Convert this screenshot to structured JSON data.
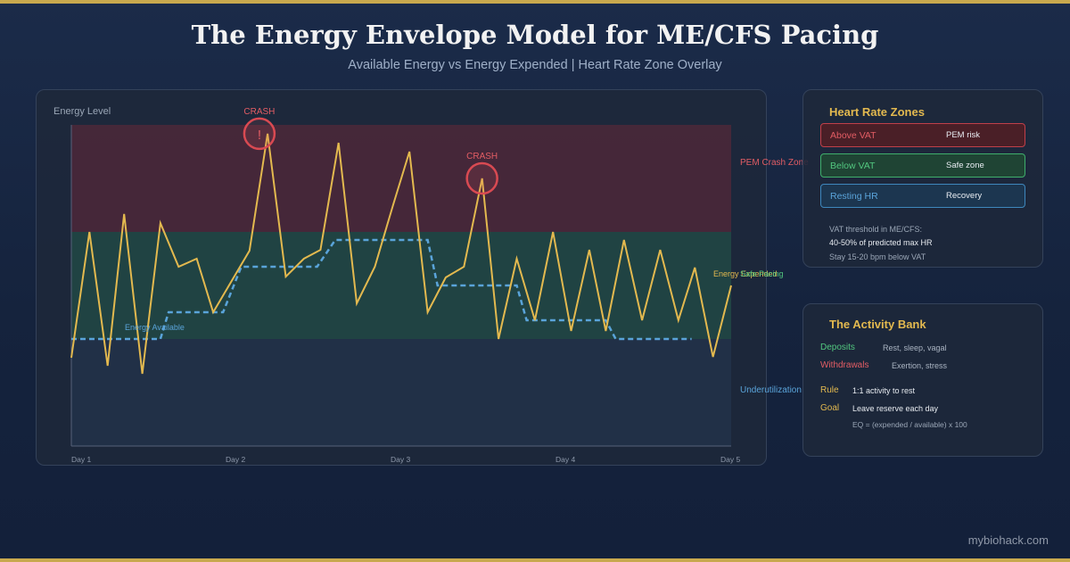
{
  "title": "The Energy Envelope Model for ME/CFS Pacing",
  "subtitle": "Available Energy vs Energy Expended | Heart Rate Zone Overlay",
  "chart_data": {
    "type": "line",
    "ylabel": "Energy Level",
    "x_ticks": [
      "Day 1",
      "Day 2",
      "Day 3",
      "Day 4",
      "Day 5"
    ],
    "x_range": [
      0,
      4
    ],
    "y_range": [
      0,
      12
    ],
    "bands": [
      {
        "label": "PEM Crash Zone",
        "from": 8,
        "to": 12,
        "color": "#e35d64"
      },
      {
        "label": "Safe Pacing",
        "from": 4,
        "to": 8,
        "color": "#52c77f"
      },
      {
        "label": "Underutilization",
        "from": 0,
        "to": 4,
        "color": "#5aa4da"
      }
    ],
    "series": [
      {
        "name": "Energy Available",
        "color": "#5aa4da",
        "style": "dashed",
        "points": [
          [
            0,
            4
          ],
          [
            0.54,
            4
          ],
          [
            0.59,
            5
          ],
          [
            0.92,
            5
          ],
          [
            1.03,
            6.7
          ],
          [
            1.49,
            6.7
          ],
          [
            1.6,
            7.7
          ],
          [
            2.16,
            7.7
          ],
          [
            2.22,
            6
          ],
          [
            2.7,
            6
          ],
          [
            2.76,
            4.7
          ],
          [
            3.24,
            4.7
          ],
          [
            3.3,
            4
          ],
          [
            3.76,
            4
          ]
        ]
      },
      {
        "name": "Energy Expended",
        "color": "#e3b94f",
        "style": "solid",
        "points": [
          [
            0,
            3.3
          ],
          [
            0.11,
            8
          ],
          [
            0.22,
            3
          ],
          [
            0.32,
            8.67
          ],
          [
            0.43,
            2.7
          ],
          [
            0.54,
            8.33
          ],
          [
            0.65,
            6.7
          ],
          [
            0.76,
            7
          ],
          [
            0.86,
            5
          ],
          [
            1.08,
            7.3
          ],
          [
            1.19,
            11.67
          ],
          [
            1.3,
            6.33
          ],
          [
            1.41,
            7
          ],
          [
            1.51,
            7.33
          ],
          [
            1.62,
            11.33
          ],
          [
            1.73,
            5.33
          ],
          [
            1.84,
            6.7
          ],
          [
            1.95,
            9
          ],
          [
            2.05,
            11
          ],
          [
            2.16,
            5
          ],
          [
            2.27,
            6.3
          ],
          [
            2.38,
            6.7
          ],
          [
            2.49,
            10
          ],
          [
            2.59,
            4
          ],
          [
            2.7,
            7
          ],
          [
            2.81,
            4.7
          ],
          [
            2.92,
            8
          ],
          [
            3.03,
            4.3
          ],
          [
            3.14,
            7.33
          ],
          [
            3.24,
            4.3
          ],
          [
            3.35,
            7.7
          ],
          [
            3.46,
            4.7
          ],
          [
            3.57,
            7.33
          ],
          [
            3.68,
            4.7
          ],
          [
            3.78,
            6.67
          ],
          [
            3.89,
            3.33
          ],
          [
            4,
            6
          ]
        ]
      }
    ],
    "annotations": [
      {
        "label": "CRASH",
        "x": 1.14,
        "y": 11.67,
        "icon": "!"
      },
      {
        "label": "CRASH",
        "x": 2.49,
        "y": 10
      }
    ],
    "inline_labels": {
      "available": "Energy Available",
      "expended": "Energy Expended",
      "safe": "Safe Pacing"
    }
  },
  "zones": {
    "title": "Heart Rate Zones",
    "items": [
      {
        "label": "Above VAT",
        "desc": "PEM risk"
      },
      {
        "label": "Below VAT",
        "desc": "Safe zone"
      },
      {
        "label": "Resting HR",
        "desc": "Recovery"
      }
    ],
    "notes": [
      "VAT threshold in ME/CFS:",
      "40-50% of predicted max HR",
      "Stay 15-20 bpm below VAT"
    ]
  },
  "bank": {
    "title": "The Activity Bank",
    "items": [
      {
        "key": "Deposits",
        "val": "Rest, sleep, vagal"
      },
      {
        "key": "Withdrawals",
        "val": "Exertion, stress"
      },
      {
        "key": "Rule",
        "val": "1:1 activity to rest"
      },
      {
        "key": "Goal",
        "val": "Leave reserve each day"
      }
    ],
    "eq": "EQ = (expended / available) x 100"
  },
  "footer": "mybiohack.com"
}
